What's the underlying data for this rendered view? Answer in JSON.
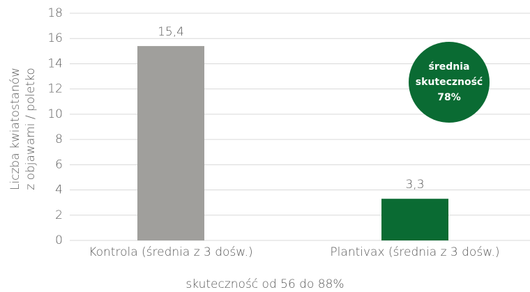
{
  "chart_data": {
    "type": "bar",
    "categories": [
      "Kontrola (średnia z 3 dośw.)",
      "Plantivax (średnia z 3 dośw.)"
    ],
    "values": [
      15.4,
      3.3
    ],
    "value_labels": [
      "15,4",
      "3,3"
    ],
    "colors": [
      "#a09f9c",
      "#0a6b33"
    ],
    "ylim": [
      0,
      18
    ],
    "yticks": [
      0,
      2,
      4,
      6,
      8,
      10,
      12,
      14,
      16,
      18
    ],
    "grid": true,
    "y_label": [
      "Liczba kwiatostanów",
      "z objawami / poletko"
    ],
    "x_label": "skuteczność od 56 do 88%",
    "annotation": {
      "lines": [
        "średnia",
        "skuteczność",
        "78%"
      ],
      "color": "#0a6b33"
    }
  }
}
